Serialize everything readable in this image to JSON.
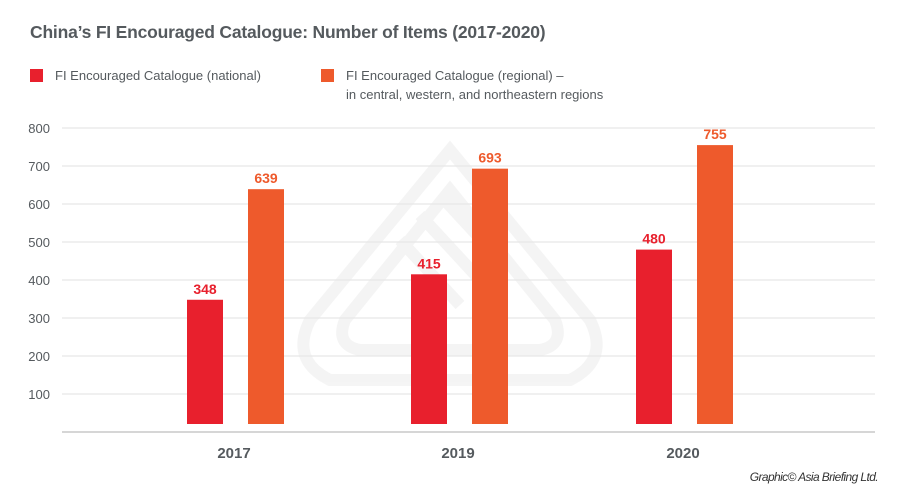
{
  "chart_data": {
    "type": "bar",
    "title": "China’s FI Encouraged Catalogue: Number of Items (2017-2020)",
    "categories": [
      "2017",
      "2019",
      "2020"
    ],
    "series": [
      {
        "name": "FI Encouraged Catalogue (national)",
        "color": "#e8202d",
        "values": [
          348,
          415,
          480
        ]
      },
      {
        "name": "FI Encouraged Catalogue (regional) –",
        "name_line2": "in central, western, and northeastern regions",
        "color": "#ee5a2c",
        "values": [
          639,
          693,
          755
        ]
      }
    ],
    "xlabel": "",
    "ylabel": "",
    "ylim": [
      0,
      800
    ],
    "yticks": [
      "100",
      "200",
      "300",
      "400",
      "500",
      "600",
      "700",
      "800"
    ],
    "ytick_values": [
      100,
      200,
      300,
      400,
      500,
      600,
      700,
      800
    ],
    "grid": true,
    "legend_position": "top-left"
  },
  "credit": "Graphic© Asia Briefing Ltd."
}
